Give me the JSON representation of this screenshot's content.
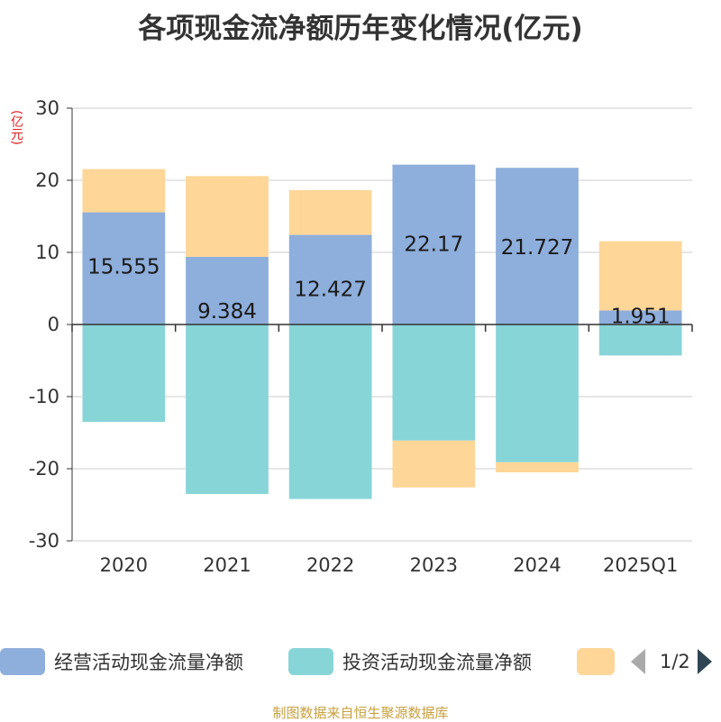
{
  "chart_data": {
    "type": "bar",
    "title": "各项现金流净额历年变化情况(亿元)",
    "ylabel": "(亿元)",
    "ylim": [
      -30,
      30
    ],
    "yticks": [
      30,
      20,
      10,
      0,
      -10,
      -20,
      -30
    ],
    "categories": [
      "2020",
      "2021",
      "2022",
      "2023",
      "2024",
      "2025Q1"
    ],
    "stacked": true,
    "series": [
      {
        "name": "经营活动现金流量净额",
        "color": "#8eaedb",
        "values": [
          15.555,
          9.384,
          12.427,
          22.17,
          21.727,
          1.951
        ],
        "labels": [
          "15.555",
          "9.384",
          "12.427",
          "22.17",
          "21.727",
          "1.951"
        ]
      },
      {
        "name": "投资活动现金流量净额",
        "color": "#88d5d8",
        "values": [
          -13.5,
          -23.5,
          -24.2,
          -16.1,
          -19.1,
          -4.3
        ]
      },
      {
        "name": "",
        "color": "#fed697",
        "values": [
          6.0,
          11.2,
          6.2,
          -6.5,
          -1.4,
          9.6
        ]
      }
    ],
    "grid": true,
    "legend": "bottom",
    "pager": "1/2"
  },
  "footer": "制图数据来自恒生聚源数据库"
}
